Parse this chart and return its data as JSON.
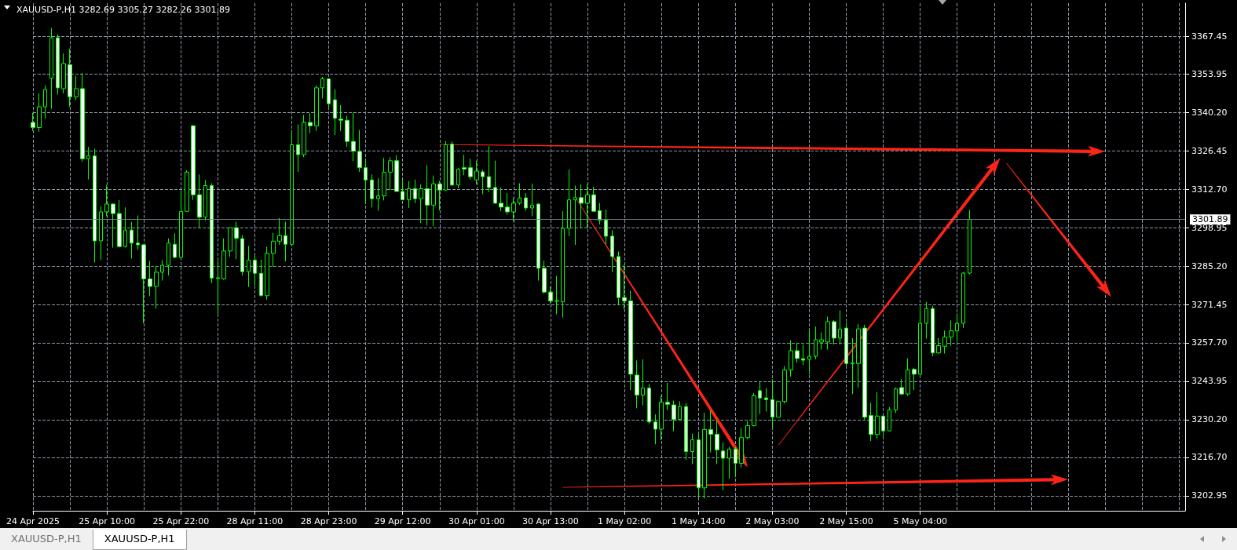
{
  "chart_data": {
    "type": "candlestick",
    "title": "XAUUSD-P,H1 3282.69 3305.27 3282.26 3301.89",
    "color": "#00ff00",
    "grid": true,
    "categories": [
      "24 Apr 2025",
      null,
      null,
      null,
      null,
      null,
      null,
      null,
      null,
      null,
      null,
      null,
      "25 Apr 10:00",
      null,
      null,
      null,
      null,
      null,
      null,
      null,
      null,
      null,
      null,
      null,
      "25 Apr 22:00",
      null,
      null,
      null,
      null,
      null,
      null,
      null,
      null,
      null,
      null,
      null,
      "28 Apr 11:00",
      null,
      null,
      null,
      null,
      null,
      null,
      null,
      null,
      null,
      null,
      null,
      "28 Apr 23:00",
      null,
      null,
      null,
      null,
      null,
      null,
      null,
      null,
      null,
      null,
      null,
      "29 Apr 12:00",
      null,
      null,
      null,
      null,
      null,
      null,
      null,
      null,
      null,
      null,
      null,
      "30 Apr 01:00",
      null,
      null,
      null,
      null,
      null,
      null,
      null,
      null,
      null,
      null,
      null,
      "30 Apr 13:00",
      null,
      null,
      null,
      null,
      null,
      null,
      null,
      null,
      null,
      null,
      null,
      "1 May 02:00",
      null,
      null,
      null,
      null,
      null,
      null,
      null,
      null,
      null,
      null,
      null,
      "1 May 14:00",
      null,
      null,
      null,
      null,
      null,
      null,
      null,
      null,
      null,
      null,
      null,
      "2 May 03:00",
      null,
      null,
      null,
      null,
      null,
      null,
      null,
      null,
      null,
      null,
      null,
      "2 May 15:00",
      null,
      null,
      null,
      null,
      null,
      null,
      null,
      null,
      null,
      null,
      null,
      "5 May 04:00",
      null,
      null,
      null,
      null,
      null,
      null,
      null,
      null,
      null,
      null,
      null,
      null,
      null,
      null,
      null,
      null,
      null,
      null,
      null,
      null,
      null,
      null,
      null,
      null,
      null,
      null,
      null,
      null,
      null,
      null,
      null,
      null,
      null,
      null,
      null,
      null,
      null,
      null,
      null,
      null,
      null,
      null,
      null
    ],
    "ohlc": [
      [
        3336.6,
        3340.1,
        3333.6,
        3334.8
      ],
      [
        3334.8,
        3347.0,
        3333.3,
        3342.2
      ],
      [
        3342.2,
        3349.9,
        3338.0,
        3348.4
      ],
      [
        3352.4,
        3370.5,
        3341.5,
        3366.9
      ],
      [
        3366.9,
        3368.2,
        3346.6,
        3349.0
      ],
      [
        3348.7,
        3361.3,
        3347.0,
        3357.7
      ],
      [
        3357.3,
        3363.0,
        3342.2,
        3345.8
      ],
      [
        3345.8,
        3353.3,
        3344.6,
        3348.7
      ],
      [
        3348.7,
        3354.3,
        3322.5,
        3323.6
      ],
      [
        3323.6,
        3327.8,
        3316.2,
        3324.6
      ],
      [
        3324.6,
        3327.2,
        3286.5,
        3294.2
      ],
      [
        3294.2,
        3306.6,
        3287.3,
        3304.6
      ],
      [
        3304.6,
        3314.2,
        3303.0,
        3307.4
      ],
      [
        3307.4,
        3307.7,
        3291.8,
        3304.0
      ],
      [
        3304.0,
        3308.8,
        3291.8,
        3292.2
      ],
      [
        3292.2,
        3306.2,
        3291.8,
        3298.1
      ],
      [
        3298.1,
        3301.0,
        3287.9,
        3293.4
      ],
      [
        3293.4,
        3303.3,
        3291.0,
        3292.8
      ],
      [
        3292.8,
        3293.0,
        3264.7,
        3280.6
      ],
      [
        3280.6,
        3287.1,
        3274.4,
        3277.9
      ],
      [
        3277.9,
        3285.3,
        3270.0,
        3283.0
      ],
      [
        3283.0,
        3287.3,
        3280.0,
        3285.5
      ],
      [
        3285.5,
        3295.1,
        3281.8,
        3293.4
      ],
      [
        3293.0,
        3296.9,
        3288.0,
        3288.3
      ],
      [
        3288.3,
        3312.4,
        3287.7,
        3304.7
      ],
      [
        3304.8,
        3319.5,
        3304.8,
        3318.8
      ],
      [
        3335.4,
        3335.7,
        3308.9,
        3310.7
      ],
      [
        3310.7,
        3318.0,
        3298.7,
        3302.7
      ],
      [
        3302.7,
        3316.0,
        3301.5,
        3314.0
      ],
      [
        3314.0,
        3314.8,
        3279.1,
        3280.9
      ],
      [
        3280.7,
        3287.1,
        3267.9,
        3281.0
      ],
      [
        3280.6,
        3295.1,
        3280.3,
        3290.6
      ],
      [
        3290.6,
        3298.9,
        3288.5,
        3298.9
      ],
      [
        3298.9,
        3301.0,
        3287.7,
        3295.1
      ],
      [
        3295.0,
        3296.3,
        3281.8,
        3283.2
      ],
      [
        3283.2,
        3292.4,
        3277.7,
        3287.3
      ],
      [
        3287.3,
        3288.9,
        3278.3,
        3282.6
      ],
      [
        3282.6,
        3287.5,
        3274.4,
        3274.6
      ],
      [
        3274.6,
        3292.1,
        3273.2,
        3289.7
      ],
      [
        3289.7,
        3297.1,
        3285.0,
        3294.1
      ],
      [
        3294.1,
        3302.4,
        3292.8,
        3296.1
      ],
      [
        3296.1,
        3301.0,
        3286.9,
        3293.0
      ],
      [
        3293.0,
        3333.1,
        3293.0,
        3328.6
      ],
      [
        3328.6,
        3335.9,
        3318.9,
        3325.1
      ],
      [
        3325.1,
        3339.3,
        3324.2,
        3336.6
      ],
      [
        3336.6,
        3339.9,
        3332.8,
        3335.4
      ],
      [
        3335.4,
        3349.9,
        3333.6,
        3349.0
      ],
      [
        3349.0,
        3352.9,
        3345.2,
        3352.2
      ],
      [
        3352.2,
        3352.5,
        3341.9,
        3343.3
      ],
      [
        3344.7,
        3348.4,
        3332.1,
        3338.1
      ],
      [
        3337.8,
        3342.8,
        3333.5,
        3337.4
      ],
      [
        3337.4,
        3339.0,
        3327.8,
        3329.8
      ],
      [
        3329.8,
        3340.1,
        3322.7,
        3326.3
      ],
      [
        3326.2,
        3333.9,
        3318.9,
        3320.4
      ],
      [
        3320.4,
        3323.6,
        3307.7,
        3316.0
      ],
      [
        3316.0,
        3318.0,
        3306.2,
        3309.3
      ],
      [
        3309.3,
        3316.6,
        3305.0,
        3310.3
      ],
      [
        3310.3,
        3323.9,
        3308.7,
        3318.8
      ],
      [
        3318.8,
        3324.2,
        3312.4,
        3322.9
      ],
      [
        3322.9,
        3324.8,
        3311.9,
        3311.9
      ],
      [
        3311.9,
        3316.0,
        3308.9,
        3308.9
      ],
      [
        3308.9,
        3315.6,
        3306.0,
        3312.9
      ],
      [
        3312.9,
        3316.1,
        3307.7,
        3309.3
      ],
      [
        3309.3,
        3314.4,
        3300.7,
        3312.9
      ],
      [
        3312.9,
        3321.3,
        3299.7,
        3307.0
      ],
      [
        3307.0,
        3317.6,
        3299.5,
        3314.6
      ],
      [
        3314.6,
        3315.6,
        3305.1,
        3312.4
      ],
      [
        3312.4,
        3330.0,
        3312.2,
        3328.6
      ],
      [
        3328.8,
        3329.8,
        3314.0,
        3314.2
      ],
      [
        3314.2,
        3320.3,
        3313.0,
        3319.9
      ],
      [
        3320.4,
        3325.0,
        3317.7,
        3319.9
      ],
      [
        3320.4,
        3323.6,
        3316.2,
        3317.2
      ],
      [
        3316.0,
        3322.9,
        3314.4,
        3319.2
      ],
      [
        3318.9,
        3319.7,
        3310.9,
        3317.2
      ],
      [
        3317.2,
        3328.1,
        3311.6,
        3313.3
      ],
      [
        3313.3,
        3322.9,
        3307.5,
        3307.7
      ],
      [
        3307.7,
        3313.3,
        3304.8,
        3306.3
      ],
      [
        3306.3,
        3311.3,
        3303.6,
        3304.6
      ],
      [
        3304.6,
        3309.5,
        3301.2,
        3307.7
      ],
      [
        3307.7,
        3314.8,
        3307.1,
        3309.6
      ],
      [
        3309.6,
        3311.3,
        3305.0,
        3306.0
      ],
      [
        3306.0,
        3314.7,
        3303.0,
        3306.9
      ],
      [
        3307.4,
        3307.7,
        3280.0,
        3284.4
      ],
      [
        3284.4,
        3287.1,
        3275.3,
        3275.9
      ],
      [
        3275.9,
        3277.7,
        3271.8,
        3272.7
      ],
      [
        3272.6,
        3281.7,
        3268.0,
        3272.8
      ],
      [
        3272.4,
        3304.8,
        3266.8,
        3298.7
      ],
      [
        3298.7,
        3319.7,
        3295.9,
        3308.9
      ],
      [
        3308.9,
        3314.0,
        3292.8,
        3309.7
      ],
      [
        3309.7,
        3314.4,
        3298.9,
        3307.7
      ],
      [
        3307.7,
        3314.4,
        3298.9,
        3310.7
      ],
      [
        3310.7,
        3313.6,
        3304.6,
        3304.8
      ],
      [
        3305.0,
        3307.7,
        3300.1,
        3301.6
      ],
      [
        3301.6,
        3305.4,
        3293.0,
        3295.9
      ],
      [
        3295.9,
        3298.0,
        3283.0,
        3288.6
      ],
      [
        3288.6,
        3290.4,
        3271.2,
        3273.9
      ],
      [
        3273.9,
        3285.7,
        3269.7,
        3272.7
      ],
      [
        3272.7,
        3276.3,
        3240.8,
        3246.5
      ],
      [
        3246.2,
        3251.4,
        3234.3,
        3239.0
      ],
      [
        3239.0,
        3251.8,
        3235.3,
        3241.5
      ],
      [
        3241.5,
        3242.9,
        3228.7,
        3229.4
      ],
      [
        3229.4,
        3232.1,
        3221.4,
        3226.8
      ],
      [
        3226.8,
        3238.8,
        3222.9,
        3236.4
      ],
      [
        3236.4,
        3243.4,
        3233.6,
        3235.7
      ],
      [
        3235.5,
        3237.0,
        3226.1,
        3230.3
      ],
      [
        3230.3,
        3236.8,
        3230.0,
        3234.9
      ],
      [
        3234.9,
        3236.2,
        3215.8,
        3218.8
      ],
      [
        3218.8,
        3225.2,
        3214.3,
        3223.0
      ],
      [
        3223.0,
        3225.2,
        3202.3,
        3205.8
      ],
      [
        3205.8,
        3232.7,
        3202.0,
        3226.7
      ],
      [
        3226.7,
        3233.5,
        3218.5,
        3225.0
      ],
      [
        3225.0,
        3230.3,
        3214.3,
        3219.4
      ],
      [
        3219.0,
        3222.1,
        3205.0,
        3216.4
      ],
      [
        3216.4,
        3220.5,
        3209.1,
        3219.7
      ],
      [
        3219.7,
        3220.5,
        3209.6,
        3214.6
      ],
      [
        3214.6,
        3227.2,
        3213.1,
        3223.8
      ],
      [
        3223.8,
        3229.6,
        3223.2,
        3228.1
      ],
      [
        3228.1,
        3239.7,
        3227.8,
        3238.8
      ],
      [
        3240.6,
        3243.7,
        3232.3,
        3238.0
      ],
      [
        3238.0,
        3241.5,
        3233.1,
        3237.4
      ],
      [
        3237.4,
        3244.7,
        3227.6,
        3231.1
      ],
      [
        3231.1,
        3237.0,
        3231.1,
        3236.7
      ],
      [
        3236.7,
        3249.4,
        3235.9,
        3248.0
      ],
      [
        3248.0,
        3258.6,
        3245.6,
        3254.9
      ],
      [
        3254.9,
        3257.7,
        3250.6,
        3252.1
      ],
      [
        3252.0,
        3257.1,
        3249.8,
        3251.5
      ],
      [
        3251.8,
        3262.4,
        3246.5,
        3252.9
      ],
      [
        3252.9,
        3263.5,
        3251.8,
        3258.8
      ],
      [
        3258.0,
        3261.4,
        3255.3,
        3258.8
      ],
      [
        3258.0,
        3267.1,
        3255.3,
        3265.3
      ],
      [
        3265.3,
        3265.9,
        3257.1,
        3259.4
      ],
      [
        3259.4,
        3269.4,
        3257.1,
        3262.6
      ],
      [
        3263.0,
        3265.0,
        3249.4,
        3250.3
      ],
      [
        3250.2,
        3259.4,
        3239.4,
        3250.5
      ],
      [
        3250.3,
        3264.5,
        3241.7,
        3262.7
      ],
      [
        3263.0,
        3264.1,
        3230.3,
        3231.1
      ],
      [
        3231.7,
        3236.2,
        3222.6,
        3224.9
      ],
      [
        3224.9,
        3240.0,
        3223.5,
        3231.5
      ],
      [
        3231.5,
        3231.7,
        3223.7,
        3226.2
      ],
      [
        3226.2,
        3234.7,
        3226.1,
        3233.7
      ],
      [
        3233.7,
        3241.7,
        3232.6,
        3241.2
      ],
      [
        3241.7,
        3244.7,
        3239.0,
        3239.4
      ],
      [
        3239.4,
        3252.1,
        3238.8,
        3248.0
      ],
      [
        3248.2,
        3248.8,
        3240.8,
        3246.5
      ],
      [
        3246.5,
        3271.0,
        3246.1,
        3264.7
      ],
      [
        3264.7,
        3272.4,
        3259.2,
        3270.0
      ],
      [
        3270.0,
        3271.0,
        3252.9,
        3254.1
      ],
      [
        3254.1,
        3259.4,
        3253.9,
        3256.7
      ],
      [
        3256.5,
        3262.1,
        3253.9,
        3259.8
      ],
      [
        3259.8,
        3265.7,
        3256.7,
        3262.0
      ],
      [
        3262.0,
        3268.3,
        3258.2,
        3264.7
      ],
      [
        3264.7,
        3283.1,
        3263.0,
        3282.7
      ],
      [
        3282.69,
        3305.27,
        3282.26,
        3301.89
      ],
      null,
      null,
      null,
      null,
      null,
      null,
      null,
      null,
      null,
      null,
      null,
      null,
      null,
      null,
      null,
      null,
      null,
      null,
      null,
      null,
      null,
      null,
      null,
      null,
      null,
      null,
      null,
      null,
      null,
      null,
      null,
      null,
      null,
      null,
      null
    ],
    "ylim": [
      3197.6,
      3379.3
    ],
    "yticks": [
      3202.95,
      {
        "value": 3216.7,
        "label": "3216.70"
      },
      {
        "value": 3230.2,
        "label": "3230.20"
      },
      3243.95,
      {
        "value": 3257.7,
        "label": "3257.70"
      },
      3271.45,
      {
        "value": 3285.2,
        "label": "3285.20"
      },
      3298.95,
      {
        "value": 3312.7,
        "label": "3312.70"
      },
      3326.45,
      {
        "value": 3340.2,
        "label": "3340.20"
      },
      3353.95,
      3367.45
    ],
    "ref_lines": [
      {
        "axis": "y",
        "value": 3301.89,
        "label": "3301.89",
        "color": "#778899"
      }
    ],
    "annotations": [
      "XAUUSD-P,H1",
      "XAUUSD-P,H1"
    ]
  }
}
